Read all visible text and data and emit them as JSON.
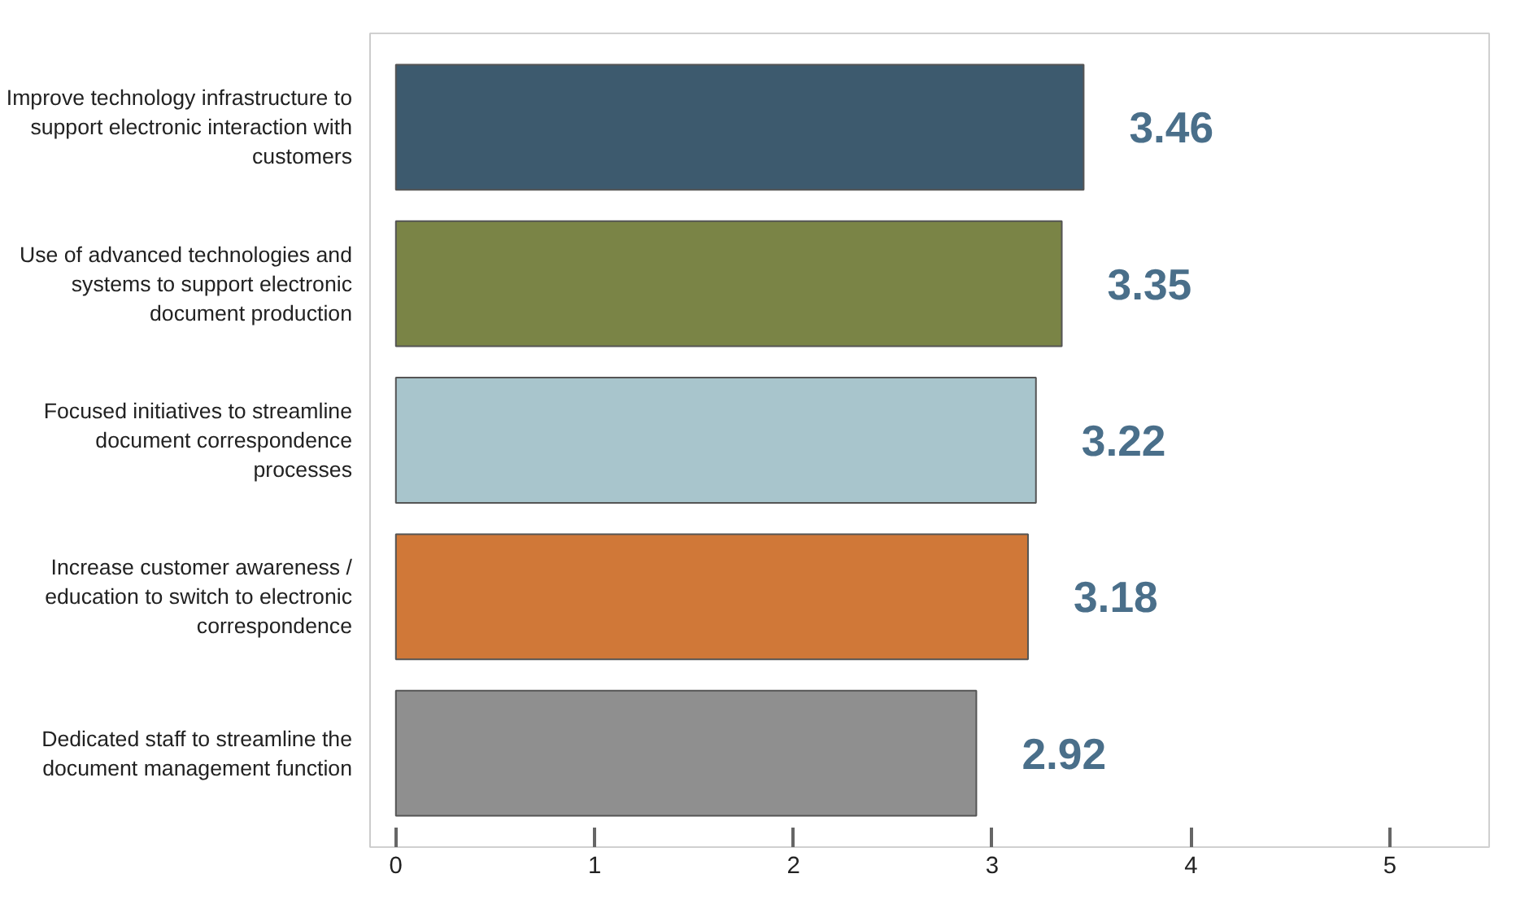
{
  "chart_data": {
    "type": "bar",
    "orientation": "horizontal",
    "categories": [
      "Improve technology infrastructure to\nsupport electronic interaction with\ncustomers",
      "Use of advanced technologies and\nsystems to support electronic\ndocument production",
      "Focused initiatives to streamline\ndocument correspondence\nprocesses",
      "Increase customer awareness /\neducation to switch to electronic\ncorrespondence",
      "Dedicated staff to streamline the\ndocument management function"
    ],
    "values": [
      3.46,
      3.35,
      3.22,
      3.18,
      2.92
    ],
    "colors": [
      "#3d5a6e",
      "#7a8446",
      "#a8c5cc",
      "#d07838",
      "#8f8f8f"
    ],
    "xlim": [
      -0.13,
      5.5
    ],
    "xticks": [
      0,
      1,
      2,
      3,
      4,
      5
    ],
    "grid": false,
    "data_labels": true
  }
}
